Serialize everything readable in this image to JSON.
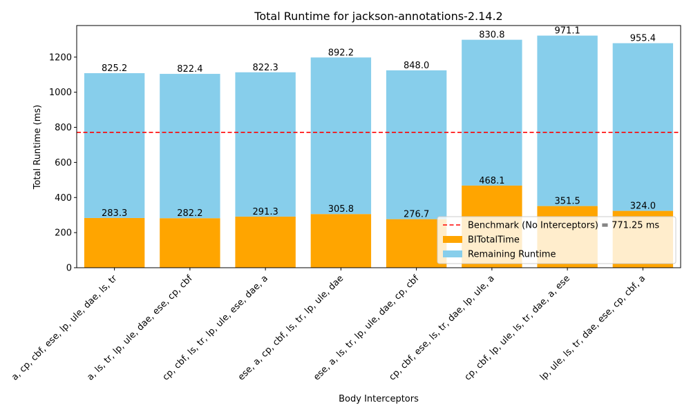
{
  "chart_data": {
    "type": "bar",
    "stacked": true,
    "title": "Total Runtime for jackson-annotations-2.14.2",
    "xlabel": "Body Interceptors",
    "ylabel": "Total Runtime (ms)",
    "ylim": [
      0,
      1380
    ],
    "yticks": [
      0,
      200,
      400,
      600,
      800,
      1000,
      1200
    ],
    "categories": [
      "a, cp, cbf, ese, lp, ule, dae, ls, tr",
      "a, ls, tr, lp, ule, dae, ese, cp, cbf",
      "cp, cbf, ls, tr, lp, ule, ese, dae, a",
      "ese, a, cp, cbf, ls, tr, lp, ule, dae",
      "ese, a, ls, tr, lp, ule, dae, cp, cbf",
      "cp, cbf, ese, ls, tr, dae, lp, ule, a",
      "cp, cbf, lp, ule, ls, tr, dae, a, ese",
      "lp, ule, ls, tr, dae, ese, cp, cbf, a"
    ],
    "series": [
      {
        "name": "BITotalTime",
        "color": "#ffa500",
        "values": [
          283.3,
          282.2,
          291.3,
          305.8,
          276.7,
          468.1,
          351.5,
          324.0
        ],
        "labels": [
          "283.3",
          "282.2",
          "291.3",
          "305.8",
          "276.7",
          "468.1",
          "351.5",
          "324.0"
        ]
      },
      {
        "name": "Remaining Runtime",
        "color": "#87ceeb",
        "values": [
          825.2,
          822.4,
          822.3,
          892.2,
          848.0,
          830.8,
          971.1,
          955.4
        ],
        "labels": [
          "825.2",
          "822.4",
          "822.3",
          "892.2",
          "848.0",
          "830.8",
          "971.1",
          "955.4"
        ]
      }
    ],
    "benchmark": {
      "value": 771.25,
      "label": "Benchmark (No Interceptors) = 771.25 ms",
      "color": "#ff0000"
    },
    "legend_position": "lower-right",
    "grid": false
  }
}
